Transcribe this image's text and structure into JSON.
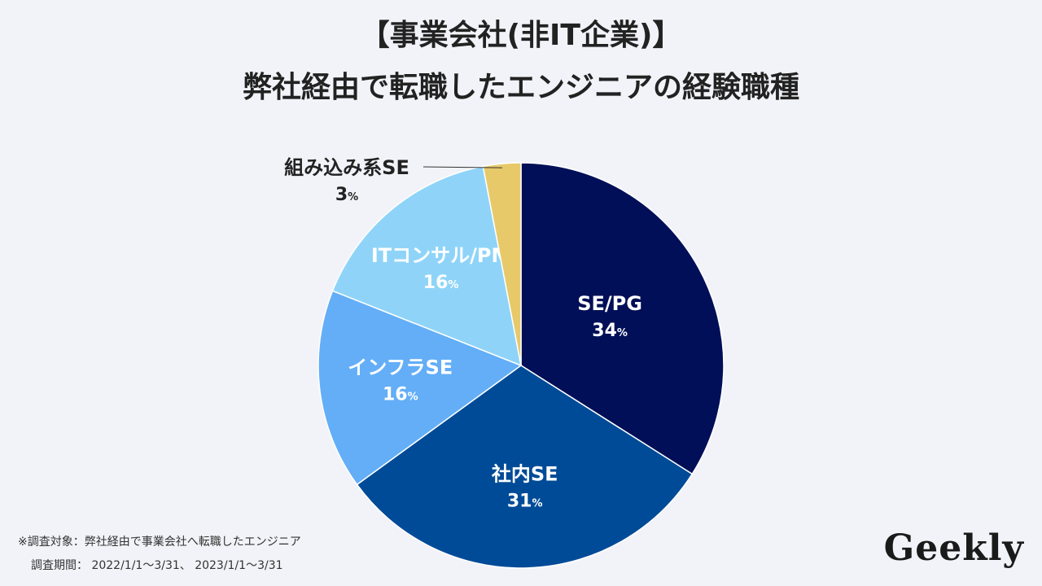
{
  "title": {
    "line1": "【事業会社(非IT企業)】",
    "line2": "弊社経由で転職したエンジニアの経験職種"
  },
  "chart_data": {
    "type": "pie",
    "categories": [
      "SE/PG",
      "社内SE",
      "インフラSE",
      "ITコンサル/PM",
      "組み込み系SE"
    ],
    "values": [
      34,
      31,
      16,
      16,
      3
    ],
    "unit": "%",
    "colors": [
      "#000f57",
      "#004b97",
      "#63aef7",
      "#8fd4f8",
      "#e7c96a"
    ],
    "label_colors": [
      "#ffffff",
      "#ffffff",
      "#ffffff",
      "#ffffff",
      "#222222"
    ]
  },
  "footnote": {
    "line1": "※調査対象：弊社経由で事業会社へ転職したエンジニア",
    "line2": "調査期間： 2022/1/1〜3/31、 2023/1/1〜3/31"
  },
  "logo": "Geekly"
}
